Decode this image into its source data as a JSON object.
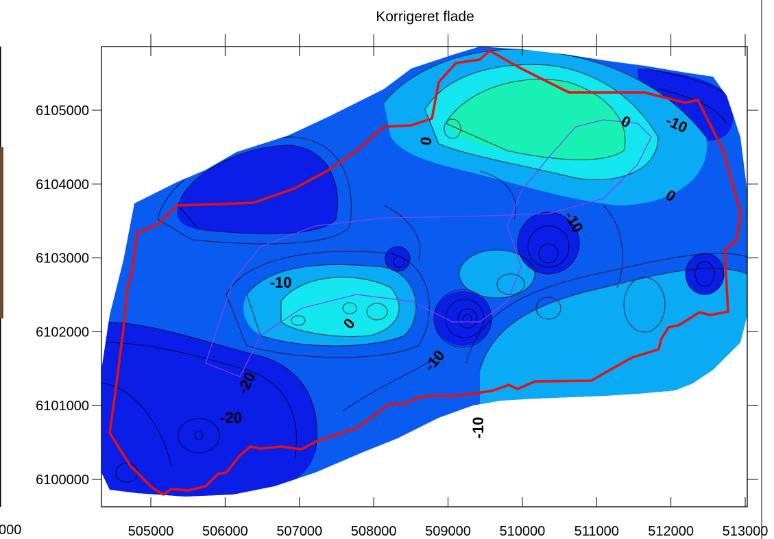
{
  "title": "Korrigeret flade",
  "colors": {
    "background": "#ffffff",
    "frame": "#000000",
    "boundary": "#e81010",
    "inner_outline": "#8a3cff",
    "contour_line": "#000000",
    "deep_blue": "#0a1ee8",
    "mid_blue": "#0a5cf0",
    "light_blue": "#0aaaf5",
    "cyan": "#14e6f0",
    "aqua_green": "#18f0b4"
  },
  "x_axis": {
    "ticks": [
      505000,
      506000,
      507000,
      508000,
      509000,
      510000,
      511000,
      512000,
      513000
    ],
    "tick_labels": [
      "505000",
      "506000",
      "507000",
      "508000",
      "509000",
      "510000",
      "511000",
      "512000",
      "513000"
    ],
    "left_partial_label": "000"
  },
  "y_axis": {
    "ticks": [
      6100000,
      6101000,
      6102000,
      6103000,
      6104000,
      6105000
    ],
    "tick_labels": [
      "6100000",
      "6101000",
      "6102000",
      "6103000",
      "6104000",
      "6105000"
    ]
  },
  "contour_labels": [
    {
      "text": "0",
      "x": 508720,
      "y": 6104580,
      "rotate": -80
    },
    {
      "text": "0",
      "x": 511390,
      "y": 6104830,
      "rotate": 25
    },
    {
      "text": "-10",
      "x": 512070,
      "y": 6104800,
      "rotate": 25
    },
    {
      "text": "0",
      "x": 511990,
      "y": 6103830,
      "rotate": 35
    },
    {
      "text": "-10",
      "x": 510680,
      "y": 6103480,
      "rotate": 60
    },
    {
      "text": "-10",
      "x": 506750,
      "y": 6102650,
      "rotate": 0
    },
    {
      "text": "0",
      "x": 507680,
      "y": 6102100,
      "rotate": -50
    },
    {
      "text": "-10",
      "x": 508830,
      "y": 6101600,
      "rotate": -50
    },
    {
      "text": "-20",
      "x": 506300,
      "y": 6101300,
      "rotate": -65
    },
    {
      "text": "-20",
      "x": 506080,
      "y": 6100820,
      "rotate": 0
    },
    {
      "text": "-10",
      "x": 509420,
      "y": 6100700,
      "rotate": -90
    }
  ]
}
